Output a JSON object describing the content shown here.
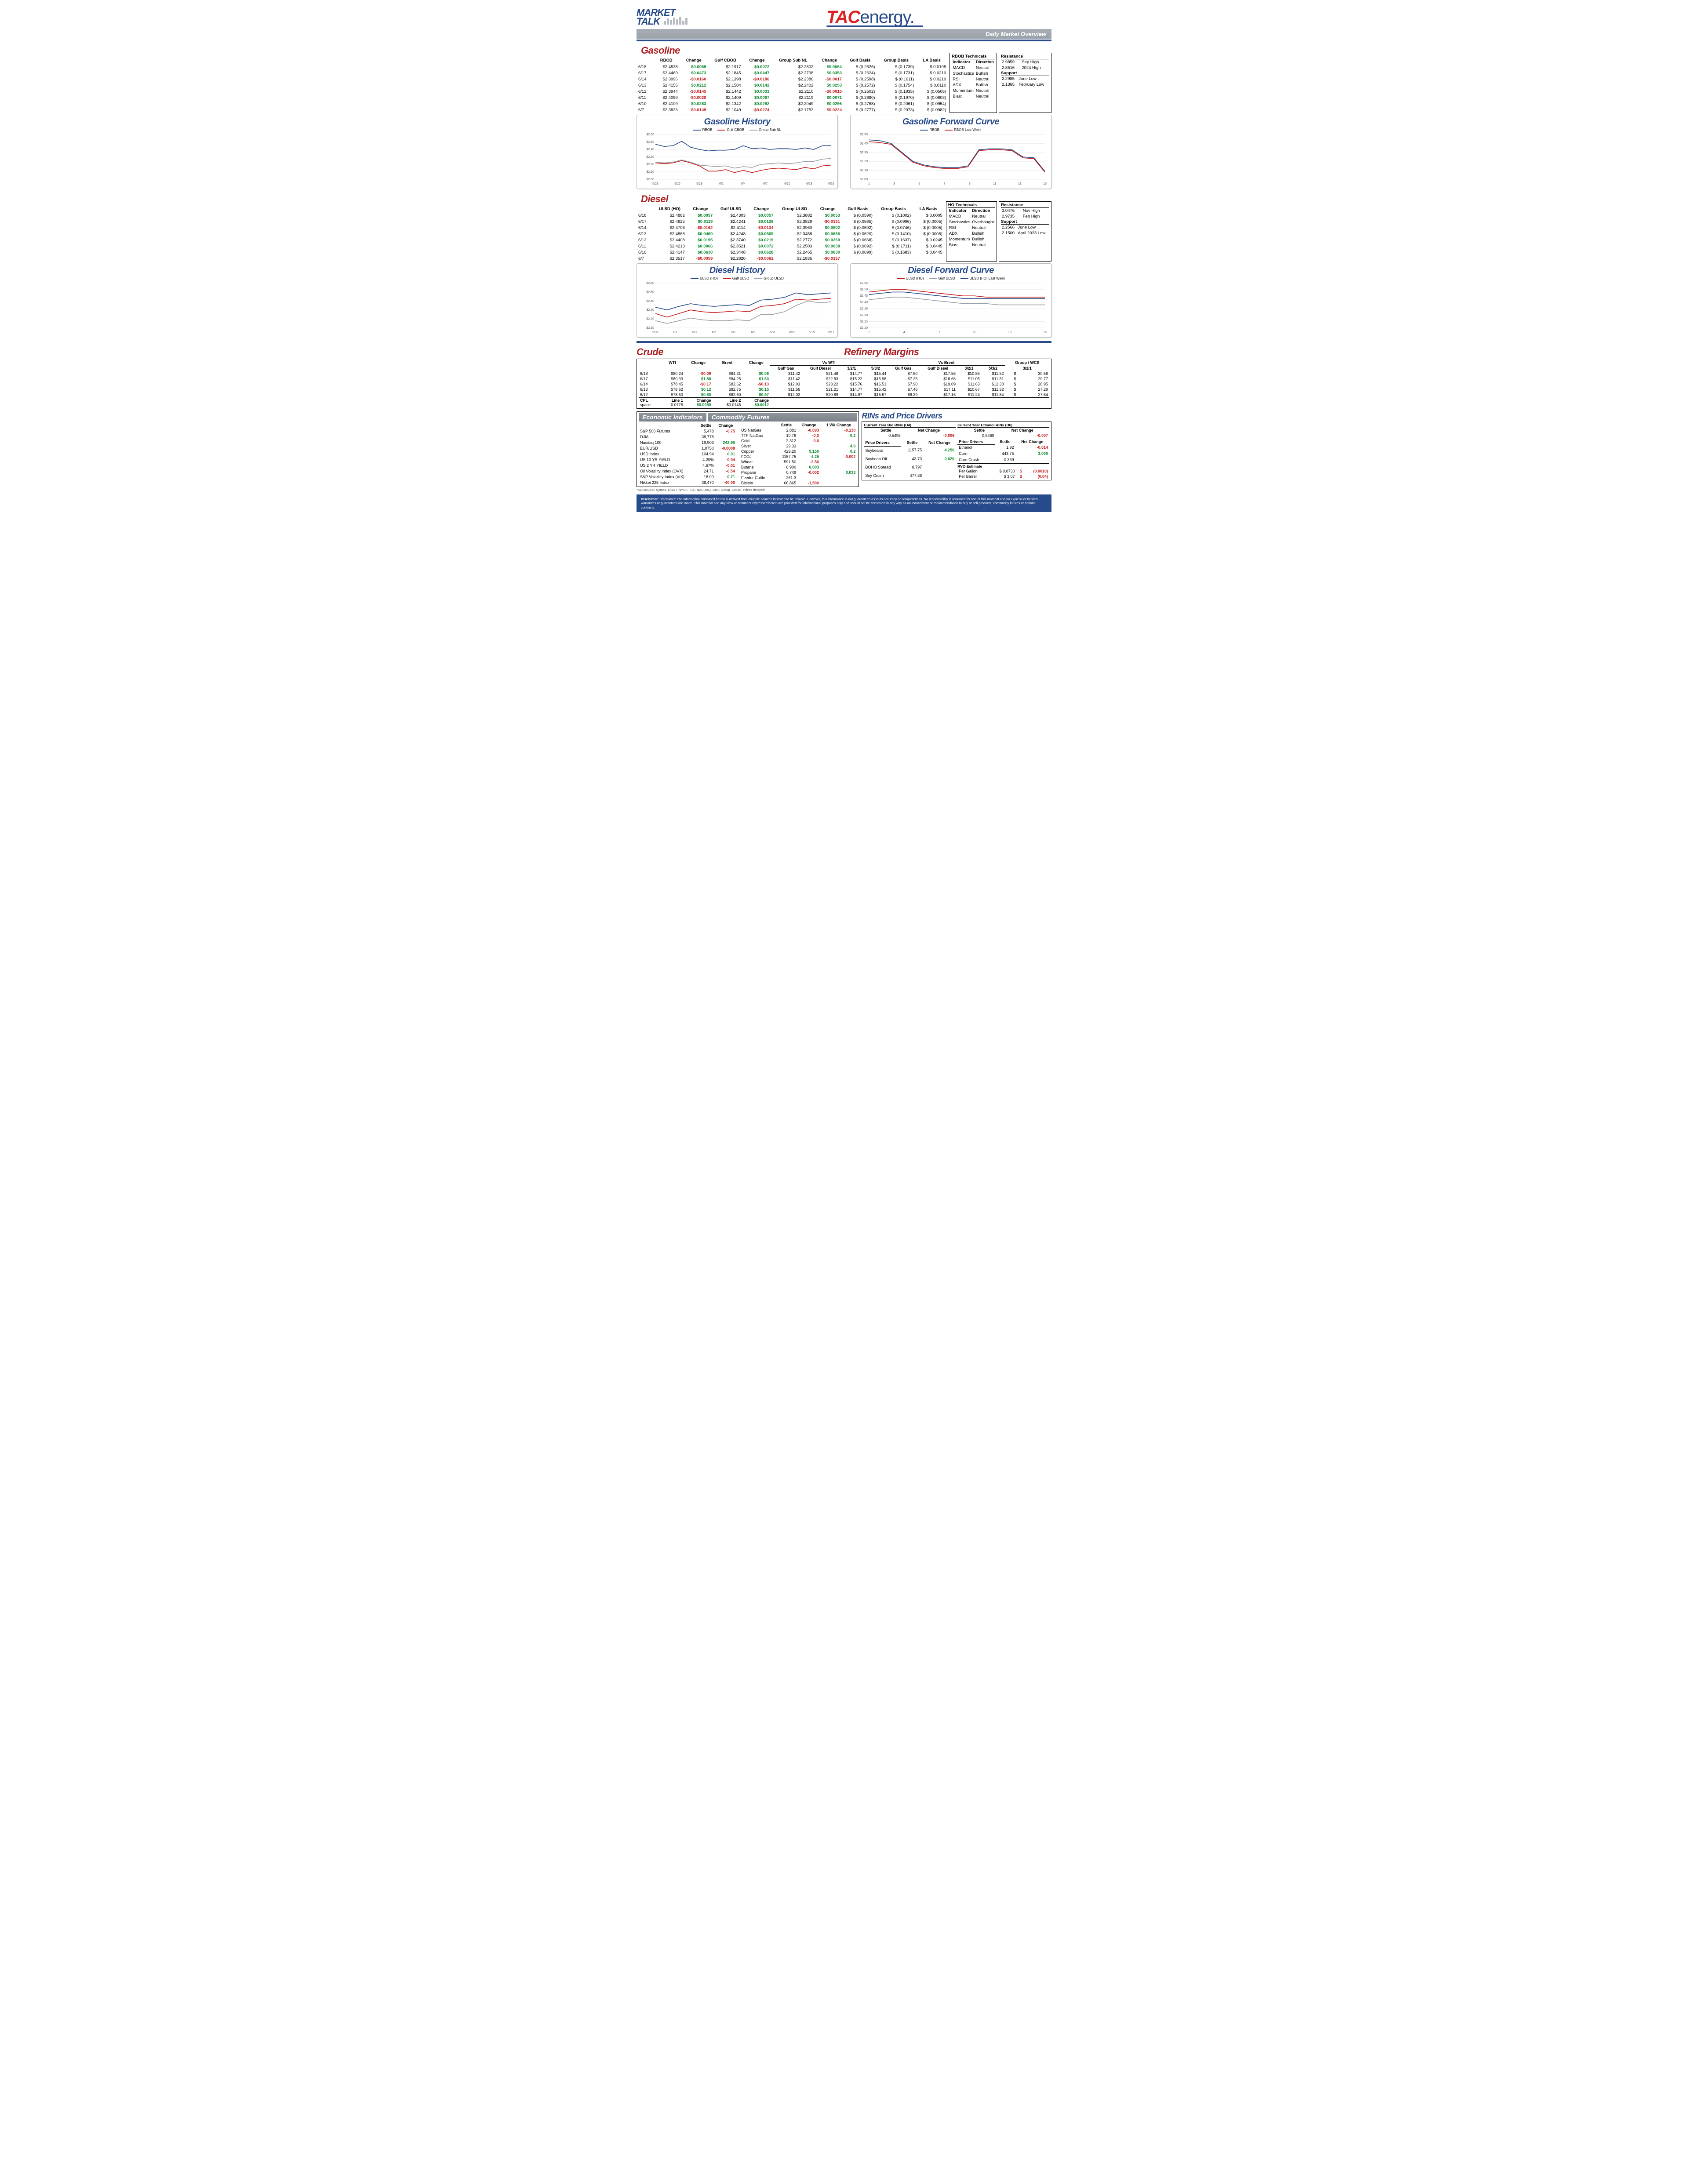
{
  "header": {
    "market_talk_top": "MARKET",
    "market_talk_bot": "TALK",
    "logo_red": "TAC",
    "logo_rest": "energy",
    "subheader": "Daily Market Overview"
  },
  "gasoline": {
    "title": "Gasoline",
    "cols": [
      "",
      "RBOB",
      "Change",
      "Gulf CBOB",
      "Change",
      "Group Sub NL",
      "Change",
      "Gulf Basis",
      "Group Basis",
      "LA Basis"
    ],
    "rows": [
      [
        "6/18",
        "$2.4538",
        "$0.0069",
        "$2.1917",
        "$0.0072",
        "$2.2802",
        "$0.0064",
        "$  (0.2626)",
        "$      (0.1739)",
        "$   0.0195"
      ],
      [
        "6/17",
        "$2.4469",
        "$0.0473",
        "$2.1845",
        "$0.0447",
        "$2.2738",
        "$0.0353",
        "$  (0.2624)",
        "$      (0.1731)",
        "$   0.0210"
      ],
      [
        "6/14",
        "$2.3996",
        "-$0.0160",
        "$2.1398",
        "-$0.0186",
        "$2.2386",
        "-$0.0017",
        "$  (0.2598)",
        "$      (0.1611)",
        "$   0.0210"
      ],
      [
        "6/13",
        "$2.4156",
        "$0.0212",
        "$2.1584",
        "$0.0142",
        "$2.2402",
        "$0.0293",
        "$  (0.2572)",
        "$      (0.1754)",
        "$   0.0110"
      ],
      [
        "6/12",
        "$2.3944",
        "-$0.0145",
        "$2.1442",
        "$0.0033",
        "$2.2110",
        "-$0.0010",
        "$  (0.2502)",
        "$      (0.1835)",
        "$  (0.0505)"
      ],
      [
        "6/11",
        "$2.4089",
        "-$0.0020",
        "$2.1409",
        "$0.0067",
        "$2.2119",
        "$0.0071",
        "$  (0.2680)",
        "$      (0.1970)",
        "$  (0.0603)"
      ],
      [
        "6/10",
        "$2.4109",
        "$0.0283",
        "$2.1342",
        "$0.0292",
        "$2.2049",
        "$0.0296",
        "$  (0.2768)",
        "$      (0.2061)",
        "$  (0.0954)"
      ],
      [
        "6/7",
        "$2.3826",
        "-$0.0149",
        "$2.1049",
        "-$0.0274",
        "$2.1753",
        "-$0.0224",
        "$  (0.2777)",
        "$      (0.2073)",
        "$  (0.0982)"
      ]
    ],
    "technicals": {
      "title": "RBOB Technicals",
      "cols": [
        "Indicator",
        "Direction"
      ],
      "rows": [
        [
          "MACD",
          "Neutral"
        ],
        [
          "Stochastics",
          "Bullish"
        ],
        [
          "RSI",
          "Neutral"
        ],
        [
          "ADX",
          "Bullish"
        ],
        [
          "Momentum",
          "Neutral"
        ],
        [
          "Bias:",
          "Neutral"
        ]
      ]
    },
    "levels": {
      "resistance_hdr": "Resistance",
      "support_hdr": "Support",
      "resistance": [
        [
          "2.9859",
          "Sep High"
        ],
        [
          "2.8516",
          "2024 High"
        ]
      ],
      "support": [
        [
          "2.2985",
          "June Low"
        ],
        [
          "2.1365",
          "February Low"
        ]
      ]
    }
  },
  "gasoline_history": {
    "title": "Gasoline History",
    "legend": [
      [
        "RBOB",
        "#274b8a"
      ],
      [
        "Gulf CBOB",
        "#c81e1e"
      ],
      [
        "Group Sub NL",
        "#9aa0a7"
      ]
    ],
    "xticks": [
      "5/23",
      "5/26",
      "5/29",
      "6/1",
      "6/4",
      "6/7",
      "6/10",
      "6/13",
      "6/16"
    ],
    "yticks": [
      "$2.00",
      "$2.10",
      "$2.20",
      "$2.30",
      "$2.40",
      "$2.50",
      "$2.60"
    ],
    "ymin": 2.0,
    "ymax": 2.6,
    "series": {
      "rbob": [
        2.47,
        2.44,
        2.45,
        2.51,
        2.43,
        2.4,
        2.38,
        2.39,
        2.39,
        2.4,
        2.45,
        2.41,
        2.42,
        2.4,
        2.41,
        2.41,
        2.4,
        2.42,
        2.4,
        2.45,
        2.45
      ],
      "gulf": [
        2.22,
        2.21,
        2.22,
        2.25,
        2.22,
        2.18,
        2.11,
        2.11,
        2.13,
        2.09,
        2.12,
        2.09,
        2.12,
        2.14,
        2.15,
        2.14,
        2.13,
        2.16,
        2.14,
        2.18,
        2.19
      ],
      "group": [
        2.23,
        2.22,
        2.23,
        2.26,
        2.23,
        2.19,
        2.18,
        2.17,
        2.18,
        2.15,
        2.17,
        2.16,
        2.2,
        2.21,
        2.22,
        2.21,
        2.22,
        2.24,
        2.24,
        2.27,
        2.28
      ]
    }
  },
  "gasoline_fwd": {
    "title": "Gasoline Forward Curve",
    "legend": [
      [
        "RBOB",
        "#274b8a"
      ],
      [
        "RBOB Last Week",
        "#c81e1e"
      ]
    ],
    "xticks": [
      "1",
      "3",
      "5",
      "7",
      "9",
      "11",
      "13",
      "15"
    ],
    "yticks": [
      "$2.00",
      "$2.10",
      "$2.20",
      "$2.30",
      "$2.40",
      "$2.50"
    ],
    "ymin": 2.0,
    "ymax": 2.5,
    "series": {
      "rbob": [
        2.44,
        2.43,
        2.4,
        2.3,
        2.2,
        2.16,
        2.14,
        2.13,
        2.13,
        2.15,
        2.33,
        2.34,
        2.34,
        2.33,
        2.25,
        2.24,
        2.09
      ],
      "last": [
        2.42,
        2.41,
        2.39,
        2.29,
        2.19,
        2.15,
        2.13,
        2.12,
        2.12,
        2.14,
        2.32,
        2.33,
        2.33,
        2.32,
        2.24,
        2.23,
        2.08
      ]
    }
  },
  "diesel": {
    "title": "Diesel",
    "cols": [
      "",
      "ULSD (HO)",
      "Change",
      "Gulf ULSD",
      "Change",
      "Group ULSD",
      "Change",
      "Gulf Basis",
      "Group Basis",
      "LA Basis"
    ],
    "rows": [
      [
        "6/18",
        "$2.4882",
        "$0.0057",
        "$2.4303",
        "$0.0057",
        "$2.3882",
        "$0.0053",
        "$  (0.0590)",
        "$      (0.1002)",
        "$   0.0005"
      ],
      [
        "6/17",
        "$2.4825",
        "$0.0119",
        "$2.4241",
        "$0.0126",
        "$2.3829",
        "-$0.0131",
        "$  (0.0585)",
        "$      (0.0996)",
        "$  (0.0005)"
      ],
      [
        "6/14",
        "$2.4706",
        "-$0.0162",
        "$2.4114",
        "-$0.0134",
        "$2.3960",
        "$0.0502",
        "$  (0.0592)",
        "$      (0.0746)",
        "$  (0.0005)"
      ],
      [
        "6/13",
        "$2.4868",
        "$0.0460",
        "$2.4248",
        "$0.0509",
        "$2.3458",
        "$0.0686",
        "$  (0.0620)",
        "$      (0.1410)",
        "$  (0.0005)"
      ],
      [
        "6/12",
        "$2.4408",
        "$0.0195",
        "$2.3740",
        "$0.0219",
        "$2.2772",
        "$0.0269",
        "$  (0.0668)",
        "$      (0.1637)",
        "$   0.0245"
      ],
      [
        "6/11",
        "$2.4213",
        "$0.0066",
        "$2.3521",
        "$0.0072",
        "$2.2503",
        "$0.0038",
        "$  (0.0692)",
        "$      (0.1711)",
        "$   0.0445"
      ],
      [
        "6/10",
        "$2.4147",
        "$0.0630",
        "$2.3448",
        "$0.0628",
        "$2.2465",
        "$0.0630",
        "$  (0.0699)",
        "$      (0.1683)",
        "$   0.0445"
      ],
      [
        "6/7",
        "$2.3517",
        "-$0.0059",
        "$2.2820",
        "-$0.0062",
        "$2.1835",
        "-$0.0157",
        "",
        "",
        ""
      ]
    ],
    "technicals": {
      "title": "HO Technicals",
      "cols": [
        "Indicator",
        "Direction"
      ],
      "rows": [
        [
          "MACD",
          "Neutral"
        ],
        [
          "Stochastics",
          "Overbought"
        ],
        [
          "RSI",
          "Neutral"
        ],
        [
          "ADX",
          "Bullish"
        ],
        [
          "Momentum",
          "Bullish"
        ],
        [
          "Bias:",
          "Neutral"
        ]
      ]
    },
    "levels": {
      "resistance_hdr": "Resistance",
      "support_hdr": "Support",
      "resistance": [
        [
          "3.0476",
          "Nov High"
        ],
        [
          "2.9735",
          "Feb High"
        ]
      ],
      "support": [
        [
          "2.2566",
          "June Low"
        ],
        [
          "2.1500",
          "April 2023 Low"
        ]
      ]
    }
  },
  "diesel_history": {
    "title": "Diesel History",
    "legend": [
      [
        "ULSD (HO)",
        "#274b8a"
      ],
      [
        "Gulf ULSD",
        "#c81e1e"
      ],
      [
        "Group ULSD",
        "#9aa0a7"
      ]
    ],
    "xticks": [
      "5/30",
      "6/1",
      "6/3",
      "6/5",
      "6/7",
      "6/9",
      "6/11",
      "6/13",
      "6/15",
      "6/17"
    ],
    "yticks": [
      "$2.10",
      "$2.20",
      "$2.30",
      "$2.40",
      "$2.50",
      "$2.60"
    ],
    "ymin": 2.1,
    "ymax": 2.6,
    "series": {
      "ulsd": [
        2.33,
        2.3,
        2.34,
        2.37,
        2.35,
        2.34,
        2.35,
        2.36,
        2.35,
        2.41,
        2.42,
        2.44,
        2.49,
        2.47,
        2.48,
        2.49
      ],
      "gulf": [
        2.26,
        2.22,
        2.26,
        2.3,
        2.28,
        2.27,
        2.28,
        2.29,
        2.28,
        2.34,
        2.35,
        2.37,
        2.42,
        2.41,
        2.42,
        2.43
      ],
      "group": [
        2.18,
        2.15,
        2.18,
        2.21,
        2.19,
        2.18,
        2.18,
        2.19,
        2.18,
        2.25,
        2.25,
        2.28,
        2.35,
        2.4,
        2.38,
        2.39
      ]
    }
  },
  "diesel_fwd": {
    "title": "Diesel Forward Curve",
    "legend": [
      [
        "ULSD (HO)",
        "#c81e1e"
      ],
      [
        "Gulf ULSD",
        "#9aa0a7"
      ],
      [
        "ULSD (HO) Last Week",
        "#274b8a"
      ]
    ],
    "xticks": [
      "1",
      "4",
      "7",
      "10",
      "13",
      "16"
    ],
    "yticks": [
      "$2.20",
      "$2.25",
      "$2.30",
      "$2.35",
      "$2.40",
      "$2.45",
      "$2.50",
      "$2.55"
    ],
    "ymin": 2.2,
    "ymax": 2.55,
    "series": {
      "ulsd": [
        2.48,
        2.49,
        2.5,
        2.5,
        2.49,
        2.48,
        2.47,
        2.46,
        2.45,
        2.45,
        2.44,
        2.44,
        2.44,
        2.44,
        2.44,
        2.44
      ],
      "gulf": [
        2.42,
        2.43,
        2.44,
        2.44,
        2.43,
        2.42,
        2.41,
        2.4,
        2.39,
        2.39,
        2.39,
        2.38,
        2.38,
        2.38,
        2.38,
        2.38
      ],
      "last": [
        2.46,
        2.47,
        2.48,
        2.48,
        2.47,
        2.46,
        2.45,
        2.44,
        2.43,
        2.43,
        2.43,
        2.43,
        2.43,
        2.43,
        2.43,
        2.43
      ]
    }
  },
  "crude": {
    "title": "Crude",
    "cols": [
      "",
      "WTI",
      "Change",
      "Brent",
      "Change"
    ],
    "rows": [
      [
        "6/18",
        "$80.24",
        "-$0.09",
        "$84.31",
        "$0.06"
      ],
      [
        "6/17",
        "$80.33",
        "$1.88",
        "$84.25",
        "$1.63"
      ],
      [
        "6/14",
        "$78.45",
        "-$0.17",
        "$82.62",
        "-$0.13"
      ],
      [
        "6/13",
        "$78.62",
        "$0.12",
        "$82.75",
        "$0.15"
      ],
      [
        "6/12",
        "$78.50",
        "$0.60",
        "$82.60",
        "$0.97"
      ]
    ],
    "cpl": {
      "label": "CPL\nspace",
      "l1": "Line 1",
      "l1v": "0.0775",
      "l1c": "$0.0050",
      "l2": "Line 2",
      "l2v": "-$0.0145",
      "l2c": "$0.0012"
    }
  },
  "refinery": {
    "title": "Refinery Margins",
    "wti_hdr": "Vs WTI",
    "brent_hdr": "Vs Brent",
    "group_hdr": "Group / WCS",
    "cols_wti": [
      "Gulf Gas",
      "Gulf Diesel",
      "3/2/1",
      "5/3/2"
    ],
    "cols_brent": [
      "Gulf Gas",
      "Gulf Diesel",
      "3/2/1",
      "5/3/2"
    ],
    "group_col": "3/2/1",
    "rows": [
      [
        "$11.42",
        "$21.48",
        "$14.77",
        "$15.44",
        "$7.50",
        "$17.56",
        "$10.85",
        "$11.52",
        "$",
        "30.58"
      ],
      [
        "$11.42",
        "$22.83",
        "$15.22",
        "$15.98",
        "$7.25",
        "$18.66",
        "$11.05",
        "$11.81",
        "$",
        "29.77"
      ],
      [
        "$12.03",
        "$23.22",
        "$15.76",
        "$16.51",
        "$7.90",
        "$19.09",
        "$11.63",
        "$12.38",
        "$",
        "28.95"
      ],
      [
        "$11.56",
        "$21.21",
        "$14.77",
        "$15.42",
        "$7.46",
        "$17.11",
        "$10.67",
        "$11.32",
        "$",
        "27.29"
      ],
      [
        "$12.02",
        "$20.89",
        "$14.97",
        "$15.57",
        "$8.29",
        "$17.16",
        "$11.24",
        "$11.84",
        "$",
        "27.54"
      ]
    ]
  },
  "econ": {
    "title": "Economic Indicators",
    "cols": [
      "",
      "Settle",
      "Change"
    ],
    "rows": [
      [
        "S&P 500 Futures",
        "5,478",
        "-0.75"
      ],
      [
        "DJIA",
        "38,778",
        ""
      ],
      [
        "Nasdaq 100",
        "19,903",
        "242.95"
      ],
      [
        "EUR/USD",
        "1.0750",
        "-0.0008"
      ],
      [
        "USD Index",
        "104.94",
        "0.01"
      ],
      [
        "US 10 YR YIELD",
        "4.20%",
        "-0.04"
      ],
      [
        "US 2 YR YIELD",
        "4.67%",
        "-0.01"
      ],
      [
        "Oil Volatility Index (OVX)",
        "24.71",
        "-0.54"
      ],
      [
        "S&P Volatility Index (VIX)",
        "18.00",
        "0.71"
      ],
      [
        "Nikkei 225 Index",
        "38,470",
        "-40.00"
      ]
    ]
  },
  "commod": {
    "title": "Commodity Futures",
    "cols": [
      "",
      "Settle",
      "Change",
      "1 Wk Change"
    ],
    "rows": [
      [
        "US NatGas",
        "2.881",
        "-0.093",
        "-0.130"
      ],
      [
        "TTF NatGas",
        "10.76",
        "-0.3",
        "0.2"
      ],
      [
        "Gold",
        "2,312",
        "-0.6",
        ""
      ],
      [
        "Silver",
        "29.33",
        "",
        "4.9"
      ],
      [
        "Copper",
        "429.20",
        "5.150",
        "0.2"
      ],
      [
        "FCOJ",
        "1157.75",
        "4.25",
        "-0.002"
      ],
      [
        "Wheat",
        "591.50",
        "-2.50",
        ""
      ],
      [
        "Butane",
        "0.900",
        "0.003",
        ""
      ],
      [
        "Propane",
        "0.749",
        "-0.002",
        "0.033"
      ],
      [
        "Feeder Cattle",
        "261.3",
        "",
        ""
      ],
      [
        "Bitcoin",
        "66,865",
        "-1,590",
        ""
      ]
    ]
  },
  "rins": {
    "title": "RINs and Price Drivers",
    "d4": {
      "hdr": "Current Year Bio RINs (D4)",
      "settle_hdr": "Settle",
      "chg_hdr": "Net Change",
      "settle": "0.5495",
      "chg": "-0.006"
    },
    "d6": {
      "hdr": "Current Year Ethanol RINs (D6)",
      "settle_hdr": "Settle",
      "chg_hdr": "Net Change",
      "settle": "0.5460",
      "chg": "-0.007"
    },
    "drivers_l": {
      "hdr": "Price Drivers",
      "cols": [
        "",
        "Settle",
        "Net Change"
      ],
      "rows": [
        [
          "Soybeans",
          "1157.75",
          "4.250"
        ],
        [
          "",
          "",
          ""
        ],
        [
          "Soybean Oil",
          "43.73",
          "0.020"
        ],
        [
          "",
          "",
          ""
        ],
        [
          "BOHO Spread",
          "0.797",
          ""
        ],
        [
          "",
          "",
          ""
        ],
        [
          "Soy Crush",
          "477.38",
          ""
        ]
      ]
    },
    "drivers_r": {
      "hdr": "Price Drivers",
      "cols": [
        "",
        "Settle",
        "Net Change"
      ],
      "rows": [
        [
          "Ethanol",
          "1.92",
          "-0.014"
        ],
        [
          "",
          "",
          ""
        ],
        [
          "Corn",
          "443.75",
          "3.000"
        ],
        [
          "",
          "",
          ""
        ],
        [
          "Corn Crush",
          "0.339",
          ""
        ]
      ],
      "rvo": {
        "hdr": "RVO Estimate",
        "pg": "Per Gallon",
        "pgv": "$   0.0730",
        "pgc": "(0.0010)",
        "pb": "Per Barrel",
        "pbv": "$      3.07",
        "pbc": "(0.04)"
      }
    }
  },
  "sources": "*SOURCES: Nymex, CBOT, NYSE, ICE, NASDAQ, CME Group, CBOE.   Prices delayed.",
  "disclaimer": "Disclaimer: The information contained herein is derived from multiple sources believed to be reliable. However, this information is not guaranteed as to its accuracy or completeness. No responsibility is assumed for use of this material and no express or implied warranties or guarantees are made. This material and any view or comment expressed herein are provided for informational purposes only and should not be construed in any way as an inducement or recommendation to buy or sell products, commodity futures or options contracts."
}
